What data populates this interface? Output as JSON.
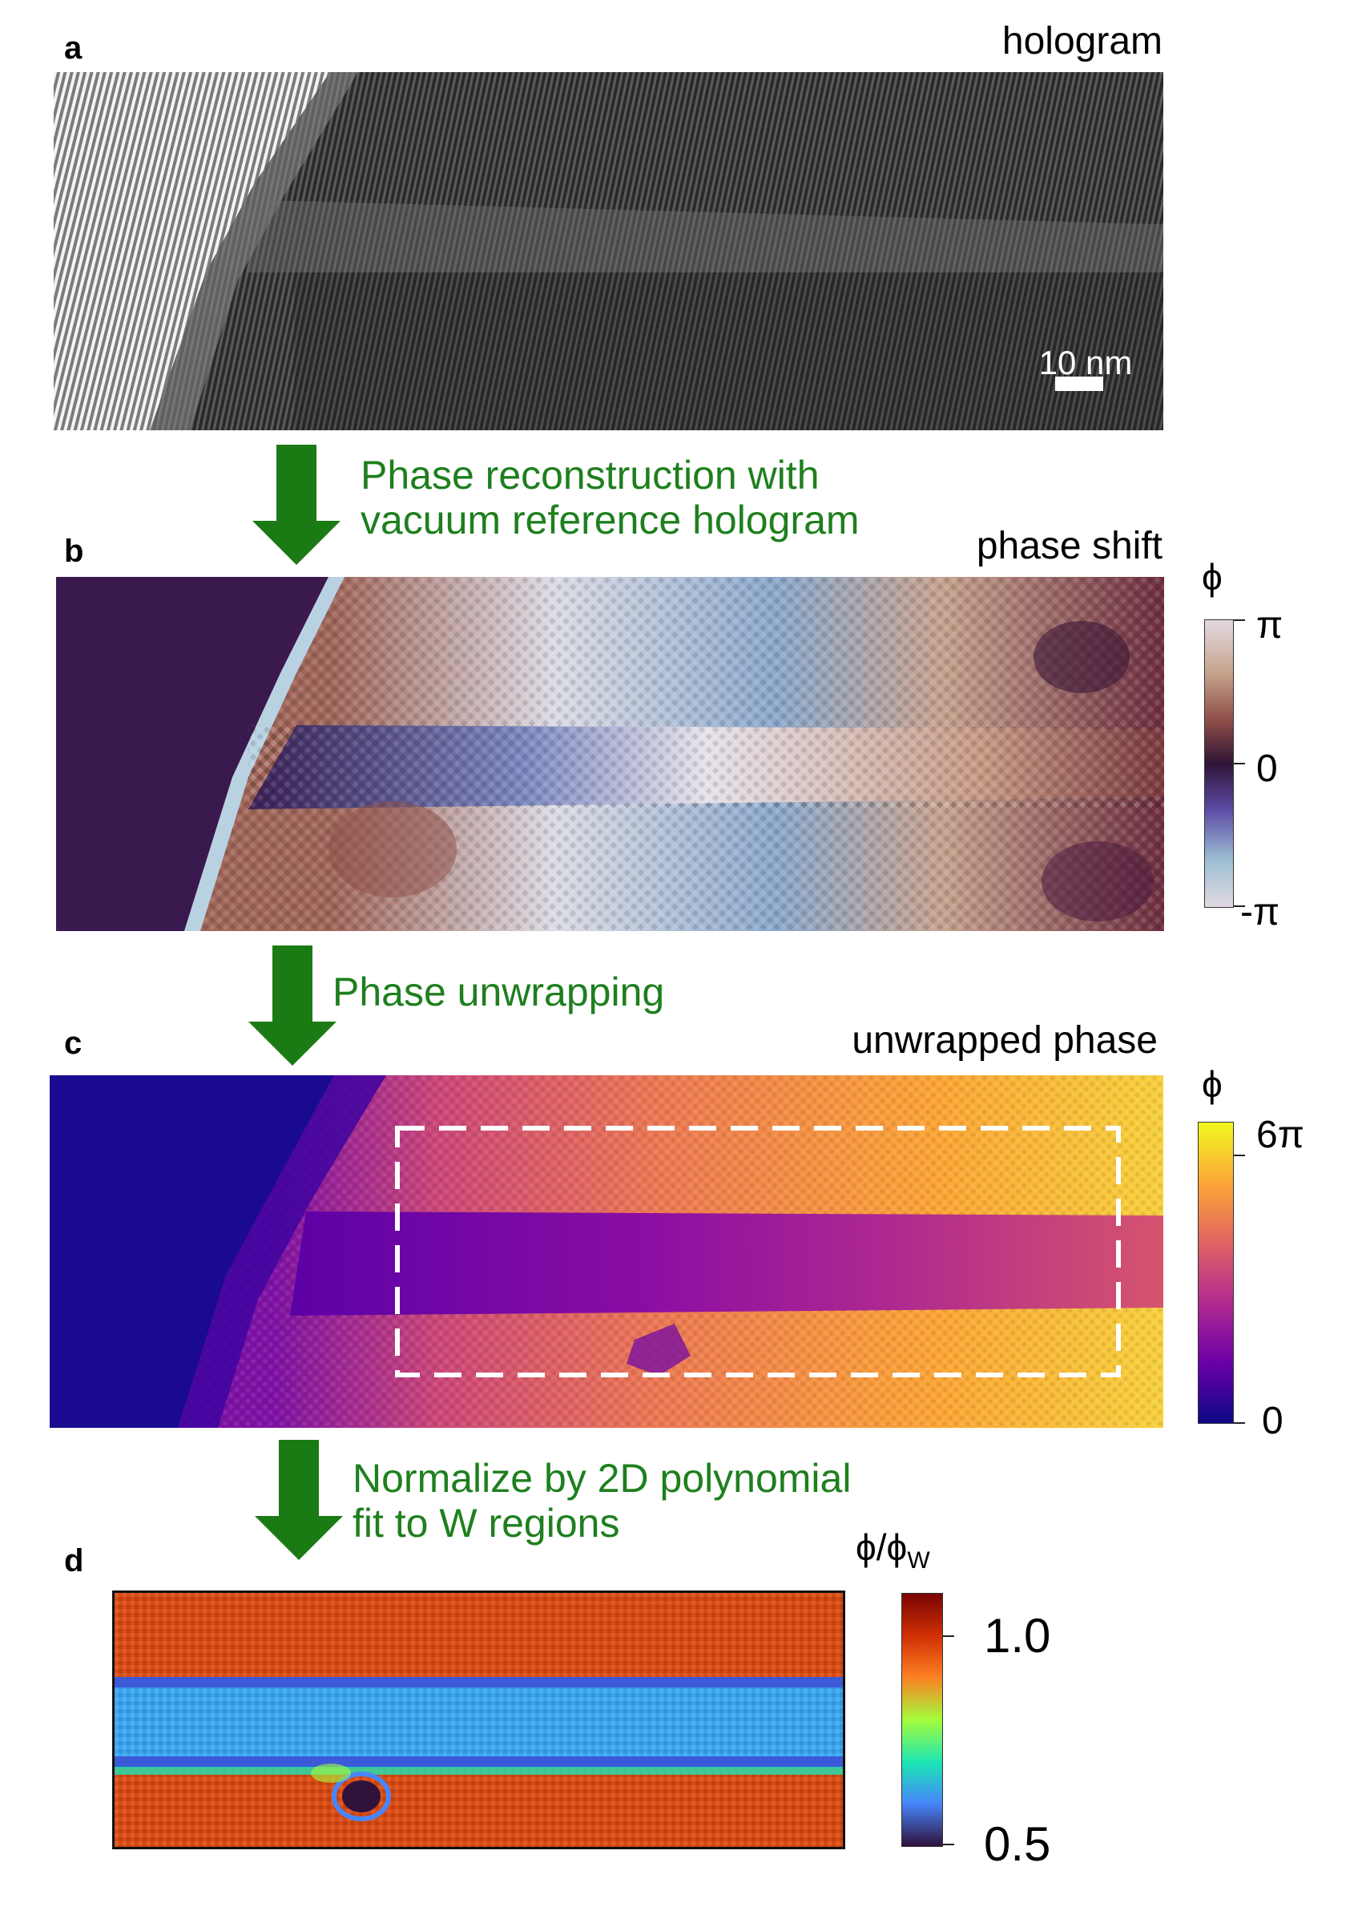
{
  "panels": {
    "a": {
      "letter": "a",
      "title": "hologram",
      "scalebar_label": "10 nm"
    },
    "b": {
      "letter": "b",
      "title": "phase shift",
      "colorbar": {
        "label": "ϕ",
        "ticks": [
          "π",
          "0",
          "-π"
        ]
      }
    },
    "c": {
      "letter": "c",
      "title": "unwrapped phase",
      "colorbar": {
        "label": "ϕ",
        "ticks": [
          "6π",
          "0"
        ]
      }
    },
    "d": {
      "letter": "d",
      "title": "",
      "colorbar": {
        "label_main": "ϕ/ϕ",
        "label_sub": "W",
        "ticks": [
          "1.0",
          "0.5"
        ]
      }
    }
  },
  "steps": [
    {
      "line1": "Phase reconstruction with",
      "line2": "vacuum reference hologram"
    },
    {
      "line1": "Phase unwrapping",
      "line2": ""
    },
    {
      "line1": "Normalize by 2D polynomial",
      "line2": "fit to W regions"
    }
  ],
  "colors": {
    "arrow_green": "#1a7a14",
    "step_text_green": "#1e7f1e",
    "twilight": [
      "#e2d9e2",
      "#c7a58e",
      "#8e4e48",
      "#2f1436",
      "#5d4ba6",
      "#9ec0d4",
      "#e2d9e2"
    ],
    "plasma": [
      "#0d0887",
      "#6a00a8",
      "#b12a90",
      "#e16462",
      "#fca636",
      "#f0f921"
    ],
    "turbo": [
      "#30123b",
      "#4686fb",
      "#1be5b5",
      "#a4fc3c",
      "#fb8022",
      "#d23105",
      "#7a0403"
    ]
  }
}
